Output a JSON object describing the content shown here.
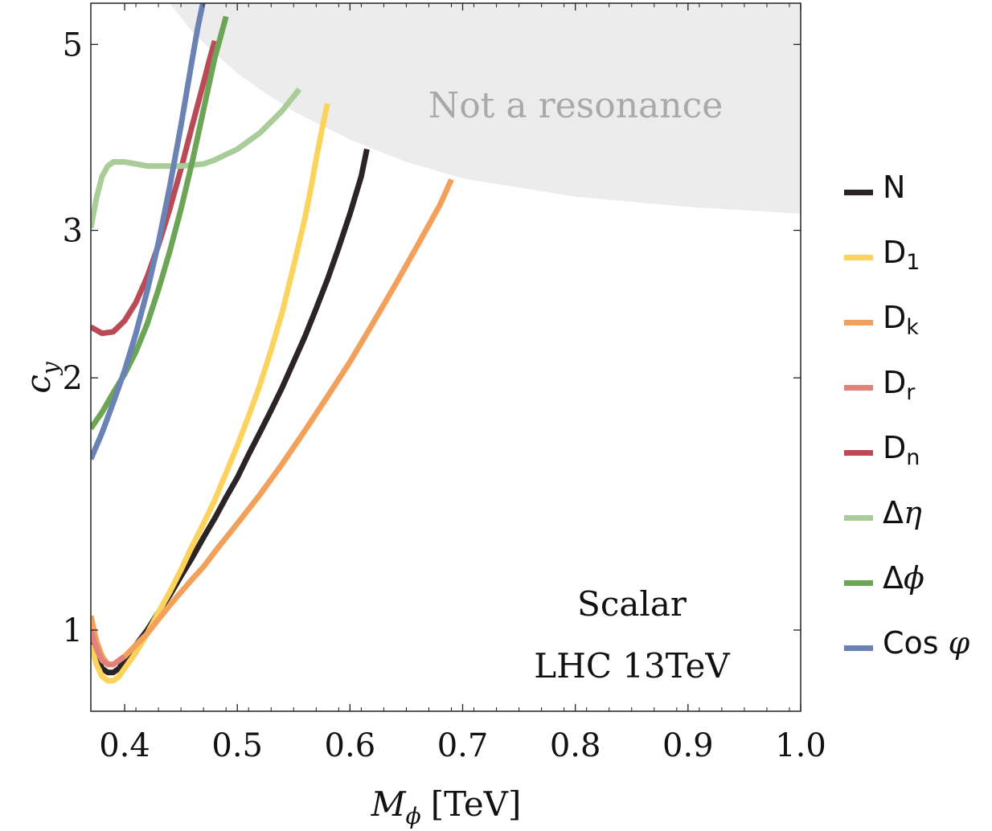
{
  "chart_data": {
    "type": "line",
    "title": "",
    "xlabel": "M_ϕ [TeV]",
    "xlabel_main": "M",
    "xlabel_sub": "ϕ",
    "xlabel_unit": "[TeV]",
    "ylabel": "c_y",
    "ylabel_main": "c",
    "ylabel_sub": "y",
    "xlim": [
      0.37,
      1.0
    ],
    "ylim": [
      0.8,
      5.6
    ],
    "yscale": "log",
    "xticks": [
      "0.4",
      "0.5",
      "0.6",
      "0.7",
      "0.8",
      "0.9",
      "1.0"
    ],
    "yticks": [
      "1",
      "2",
      "3",
      "5"
    ],
    "annotations": [
      "Scalar",
      "LHC 13TeV"
    ],
    "exclusion_region": {
      "label": "Not a resonance",
      "color": "#ececec",
      "boundary": {
        "x": [
          0.44,
          0.46,
          0.48,
          0.5,
          0.52,
          0.55,
          0.6,
          0.65,
          0.7,
          0.8,
          0.9,
          1.0
        ],
        "y": [
          5.6,
          5.18,
          4.88,
          4.62,
          4.42,
          4.16,
          3.85,
          3.62,
          3.46,
          3.29,
          3.2,
          3.14
        ]
      }
    },
    "legend": {
      "position": "right"
    },
    "series": [
      {
        "name": "N",
        "label": "N",
        "color": "#2b2324",
        "x": [
          0.37,
          0.375,
          0.38,
          0.385,
          0.39,
          0.395,
          0.4,
          0.41,
          0.42,
          0.43,
          0.44,
          0.45,
          0.46,
          0.47,
          0.48,
          0.49,
          0.5,
          0.51,
          0.52,
          0.53,
          0.54,
          0.55,
          0.56,
          0.57,
          0.58,
          0.59,
          0.6,
          0.61,
          0.615
        ],
        "y": [
          0.98,
          0.93,
          0.9,
          0.89,
          0.89,
          0.9,
          0.92,
          0.96,
          1.0,
          1.05,
          1.1,
          1.16,
          1.22,
          1.29,
          1.36,
          1.44,
          1.52,
          1.62,
          1.72,
          1.83,
          1.95,
          2.09,
          2.24,
          2.42,
          2.62,
          2.86,
          3.14,
          3.48,
          3.75
        ]
      },
      {
        "name": "D1",
        "label": "D",
        "sub": "1",
        "color": "#fcd35c",
        "x": [
          0.37,
          0.375,
          0.38,
          0.385,
          0.39,
          0.395,
          0.4,
          0.41,
          0.42,
          0.43,
          0.44,
          0.45,
          0.46,
          0.47,
          0.48,
          0.49,
          0.5,
          0.51,
          0.52,
          0.53,
          0.54,
          0.55,
          0.56,
          0.565,
          0.57,
          0.575,
          0.58
        ],
        "y": [
          0.96,
          0.91,
          0.88,
          0.87,
          0.87,
          0.88,
          0.9,
          0.94,
          0.99,
          1.05,
          1.11,
          1.18,
          1.26,
          1.34,
          1.43,
          1.54,
          1.66,
          1.8,
          1.96,
          2.16,
          2.4,
          2.72,
          3.1,
          3.35,
          3.65,
          3.95,
          4.25
        ]
      },
      {
        "name": "Dk",
        "label": "D",
        "sub": "k",
        "color": "#f2a05a",
        "x": [
          0.37,
          0.375,
          0.38,
          0.385,
          0.39,
          0.395,
          0.4,
          0.41,
          0.42,
          0.43,
          0.44,
          0.45,
          0.46,
          0.47,
          0.48,
          0.5,
          0.52,
          0.54,
          0.56,
          0.58,
          0.6,
          0.62,
          0.64,
          0.66,
          0.68,
          0.69
        ],
        "y": [
          1.04,
          0.97,
          0.93,
          0.91,
          0.91,
          0.92,
          0.93,
          0.96,
          0.99,
          1.03,
          1.07,
          1.11,
          1.15,
          1.19,
          1.24,
          1.34,
          1.45,
          1.58,
          1.73,
          1.9,
          2.09,
          2.32,
          2.58,
          2.88,
          3.22,
          3.45
        ]
      },
      {
        "name": "Dr",
        "label": "D",
        "sub": "r",
        "color": "#e1837a",
        "x": [
          0.37,
          0.375,
          0.38,
          0.385,
          0.39,
          0.395,
          0.4
        ],
        "y": [
          1.0,
          0.95,
          0.92,
          0.91,
          0.91,
          0.92,
          0.93
        ]
      },
      {
        "name": "Dn",
        "label": "D",
        "sub": "n",
        "color": "#b94a56",
        "x": [
          0.37,
          0.38,
          0.39,
          0.4,
          0.41,
          0.42,
          0.43,
          0.44,
          0.45,
          0.46,
          0.47,
          0.475,
          0.48
        ],
        "y": [
          2.3,
          2.26,
          2.27,
          2.34,
          2.46,
          2.64,
          2.88,
          3.18,
          3.55,
          4.0,
          4.5,
          4.78,
          5.05
        ]
      },
      {
        "name": "Delta_eta",
        "label": "Δ",
        "label_it": "η",
        "color": "#a9cc98",
        "x": [
          0.37,
          0.375,
          0.38,
          0.385,
          0.39,
          0.4,
          0.41,
          0.42,
          0.43,
          0.45,
          0.47,
          0.48,
          0.5,
          0.52,
          0.54,
          0.555
        ],
        "y": [
          3.02,
          3.28,
          3.48,
          3.58,
          3.62,
          3.62,
          3.6,
          3.58,
          3.58,
          3.58,
          3.6,
          3.64,
          3.75,
          3.92,
          4.17,
          4.42
        ]
      },
      {
        "name": "Delta_phi",
        "label": "Δ",
        "label_it": "ϕ",
        "color": "#6da557",
        "x": [
          0.37,
          0.38,
          0.39,
          0.4,
          0.41,
          0.42,
          0.43,
          0.44,
          0.45,
          0.46,
          0.47,
          0.48,
          0.485,
          0.49
        ],
        "y": [
          1.74,
          1.82,
          1.92,
          2.02,
          2.15,
          2.32,
          2.55,
          2.83,
          3.18,
          3.62,
          4.18,
          4.82,
          5.1,
          5.4
        ]
      },
      {
        "name": "Cos_varphi",
        "label": "Cos ",
        "label_it": "φ",
        "color": "#6b82b4",
        "x": [
          0.37,
          0.38,
          0.39,
          0.4,
          0.41,
          0.42,
          0.43,
          0.44,
          0.45,
          0.455,
          0.46,
          0.465,
          0.47
        ],
        "y": [
          1.6,
          1.72,
          1.87,
          2.04,
          2.26,
          2.54,
          2.9,
          3.38,
          4.0,
          4.38,
          4.8,
          5.25,
          5.65
        ]
      }
    ]
  }
}
